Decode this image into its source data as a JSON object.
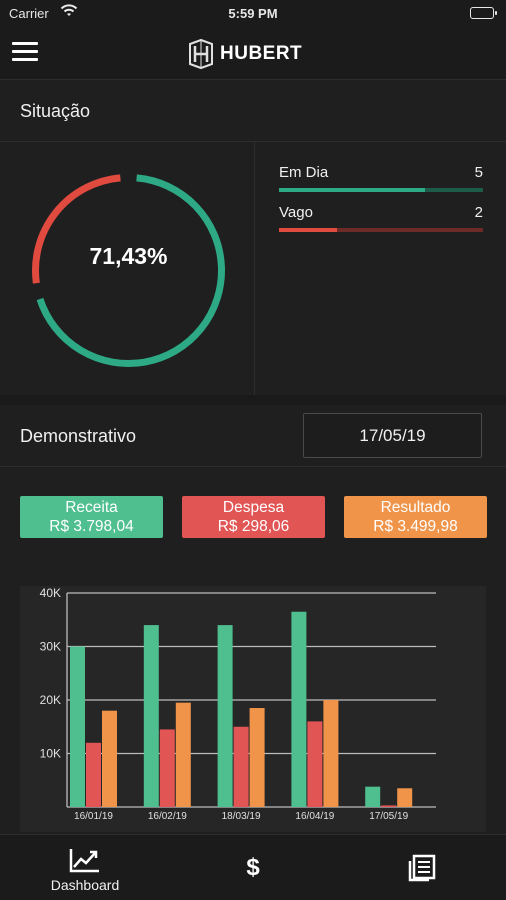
{
  "status_bar": {
    "carrier": "Carrier",
    "time": "5:59 PM"
  },
  "app": {
    "brand": "HUBERT"
  },
  "situacao": {
    "title": "Situação",
    "percent_label": "71,43%",
    "percent_value": 0.7143,
    "stats": [
      {
        "label": "Em Dia",
        "count": "5",
        "fraction": 0.7143,
        "color": "#2daa85",
        "track_color": "#1e5c4a"
      },
      {
        "label": "Vago",
        "count": "2",
        "fraction": 0.2857,
        "color": "#e04a3f",
        "track_color": "#6e2a26"
      }
    ]
  },
  "demonstrativo": {
    "title": "Demonstrativo",
    "date": "17/05/19",
    "receita": {
      "label": "Receita",
      "value": "R$ 3.798,04"
    },
    "despesa": {
      "label": "Despesa",
      "value": "R$ 298,06"
    },
    "resultado": {
      "label": "Resultado",
      "value": "R$ 3.499,98"
    }
  },
  "colors": {
    "green": "#4fbf8f",
    "red": "#e25555",
    "orange": "#f0944a"
  },
  "chart_data": {
    "type": "bar",
    "categories": [
      "16/01/19",
      "16/02/19",
      "18/03/19",
      "16/04/19",
      "17/05/19"
    ],
    "y_tick_labels": [
      "40K",
      "30K",
      "20K",
      "10K"
    ],
    "ylim": [
      0,
      40000
    ],
    "series": [
      {
        "name": "Receita",
        "color": "#4fbf8f",
        "values": [
          30000,
          34000,
          34000,
          36500,
          3800
        ]
      },
      {
        "name": "Despesa",
        "color": "#e25555",
        "values": [
          12000,
          14500,
          15000,
          16000,
          300
        ]
      },
      {
        "name": "Resultado",
        "color": "#f0944a",
        "values": [
          18000,
          19500,
          18500,
          20000,
          3500
        ]
      }
    ],
    "grid": true
  },
  "tab_bar": {
    "items": [
      {
        "label": "Dashboard",
        "icon": "chart-line-icon"
      },
      {
        "label": "",
        "icon": "dollar-icon",
        "glyph": "$"
      },
      {
        "label": "",
        "icon": "document-list-icon"
      }
    ]
  }
}
